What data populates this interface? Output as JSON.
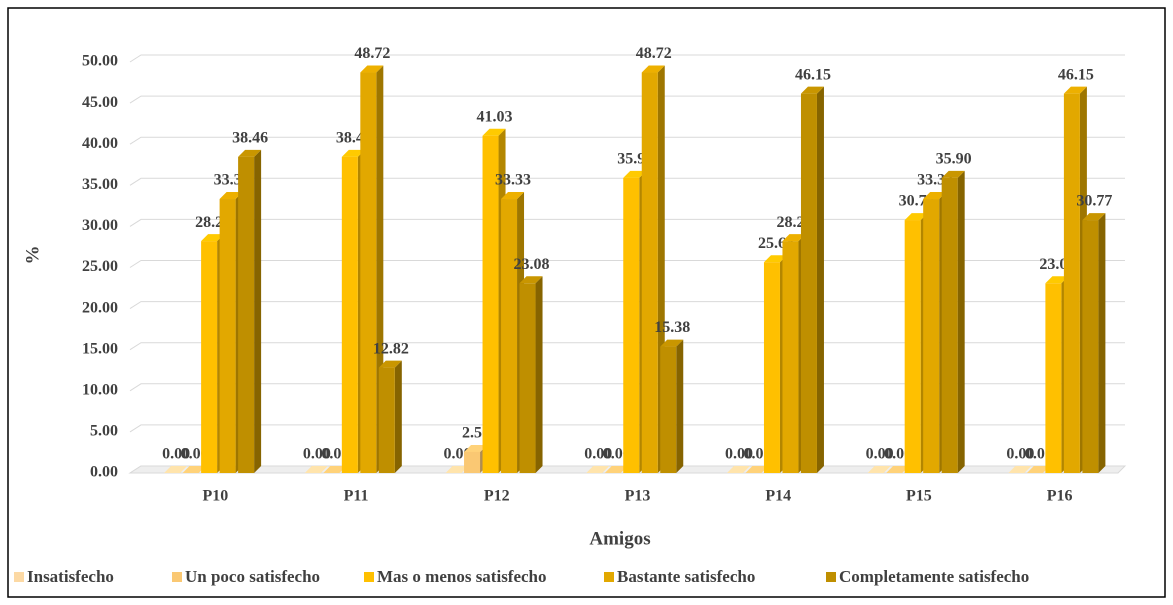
{
  "chart_data": {
    "type": "bar3d",
    "xlabel": "Amigos",
    "ylabel": "%",
    "categories": [
      "P10",
      "P11",
      "P12",
      "P13",
      "P14",
      "P15",
      "P16"
    ],
    "series": [
      {
        "name": "Insatisfecho",
        "color": "#fcd9a4",
        "values": [
          0,
          0,
          0,
          0,
          0,
          0,
          0
        ],
        "value_labels": [
          "0.00",
          "0.00",
          "0.00",
          "0.00",
          "0.00",
          "0.00",
          "0.00"
        ]
      },
      {
        "name": "Un poco satisfecho",
        "color": "#fac873",
        "values": [
          0,
          0,
          2.56,
          0,
          0,
          0,
          0
        ],
        "value_labels": [
          "0.00",
          "0.00",
          "2.56",
          "0.00",
          "0.00",
          "0.00",
          "0.00"
        ]
      },
      {
        "name": "Mas o menos satisfecho",
        "color": "#ffc000",
        "values": [
          28.21,
          38.46,
          41.03,
          35.9,
          25.64,
          30.77,
          23.08
        ],
        "value_labels": [
          "28.21",
          "38.46",
          "41.03",
          "35.90",
          "25.64",
          "30.77",
          "23.08"
        ]
      },
      {
        "name": "Bastante satisfecho",
        "color": "#e2a800",
        "values": [
          33.33,
          48.72,
          33.33,
          48.72,
          28.21,
          33.33,
          46.15
        ],
        "value_labels": [
          "33.33",
          "48.72",
          "33.33",
          "48.72",
          "28.21",
          "33.33",
          "46.15"
        ]
      },
      {
        "name": "Completamente satisfecho",
        "color": "#bf8f00",
        "values": [
          38.46,
          12.82,
          23.08,
          15.38,
          46.15,
          35.9,
          30.77
        ],
        "value_labels": [
          "38.46",
          "12.82",
          "23.08",
          "15.38",
          "46.15",
          "35.90",
          "30.77"
        ]
      }
    ],
    "ylim": [
      0,
      50
    ],
    "yticks": [
      {
        "value": 0,
        "label": "0.00"
      },
      {
        "value": 5,
        "label": "5.00"
      },
      {
        "value": 10,
        "label": "10.00"
      },
      {
        "value": 15,
        "label": "15.00"
      },
      {
        "value": 20,
        "label": "20.00"
      },
      {
        "value": 25,
        "label": "25.00"
      },
      {
        "value": 30,
        "label": "30.00"
      },
      {
        "value": 35,
        "label": "35.00"
      },
      {
        "value": 40,
        "label": "40.00"
      },
      {
        "value": 45,
        "label": "45.00"
      },
      {
        "value": 50,
        "label": "50.00"
      }
    ],
    "grid": true,
    "legend": "bottom"
  }
}
